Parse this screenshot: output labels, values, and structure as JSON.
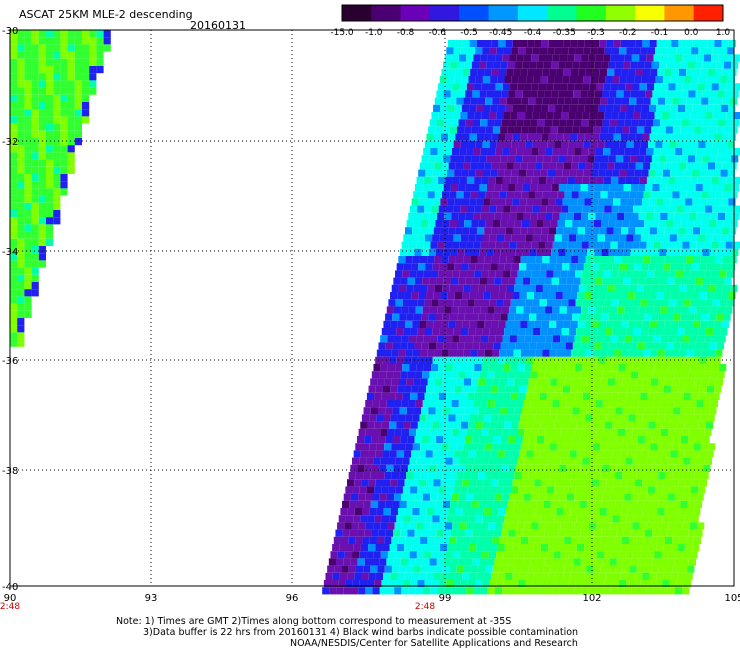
{
  "title": "ASCAT 25KM MLE-2 descending",
  "date": "20160131",
  "colorbar": {
    "labels": [
      "-15.0",
      "-1.0",
      "-0.8",
      "-0.6",
      "-0.5",
      "-0.45",
      "-0.4",
      "-0.35",
      "-0.3",
      "-0.2",
      "-0.1",
      "0.0",
      "1.0"
    ],
    "colors": [
      "#2a0030",
      "#4a0070",
      "#6a00b8",
      "#3018e0",
      "#0050ff",
      "#0098ff",
      "#00e8ff",
      "#00ff90",
      "#20ff20",
      "#90ff00",
      "#f8ff00",
      "#ff9800",
      "#ff2000"
    ]
  },
  "map": {
    "lon_labels": [
      "90",
      "93",
      "96",
      "99",
      "102",
      "105"
    ],
    "lat_labels": [
      "-30",
      "-32",
      "-34",
      "-36",
      "-38",
      "-40"
    ],
    "time_labels": [
      "2:48",
      "2:48"
    ],
    "swath_colors": {
      "deep_purple": "#4a0070",
      "purple": "#6a10b0",
      "blue": "#2020f0",
      "light_blue": "#0090ff",
      "cyan": "#00ffee",
      "aqua_green": "#00ffaa",
      "green": "#30ff30",
      "lime": "#80ff00"
    }
  },
  "notes": {
    "line1": "Note: 1) Times are GMT 2)Times along bottom correspond to measurement at -35S",
    "line2": "3)Data buffer is 22 hrs from 20160131 4) Black wind barbs indicate possible contamination",
    "line3": "NOAA/NESDIS/Center for Satellite Applications and Research"
  }
}
